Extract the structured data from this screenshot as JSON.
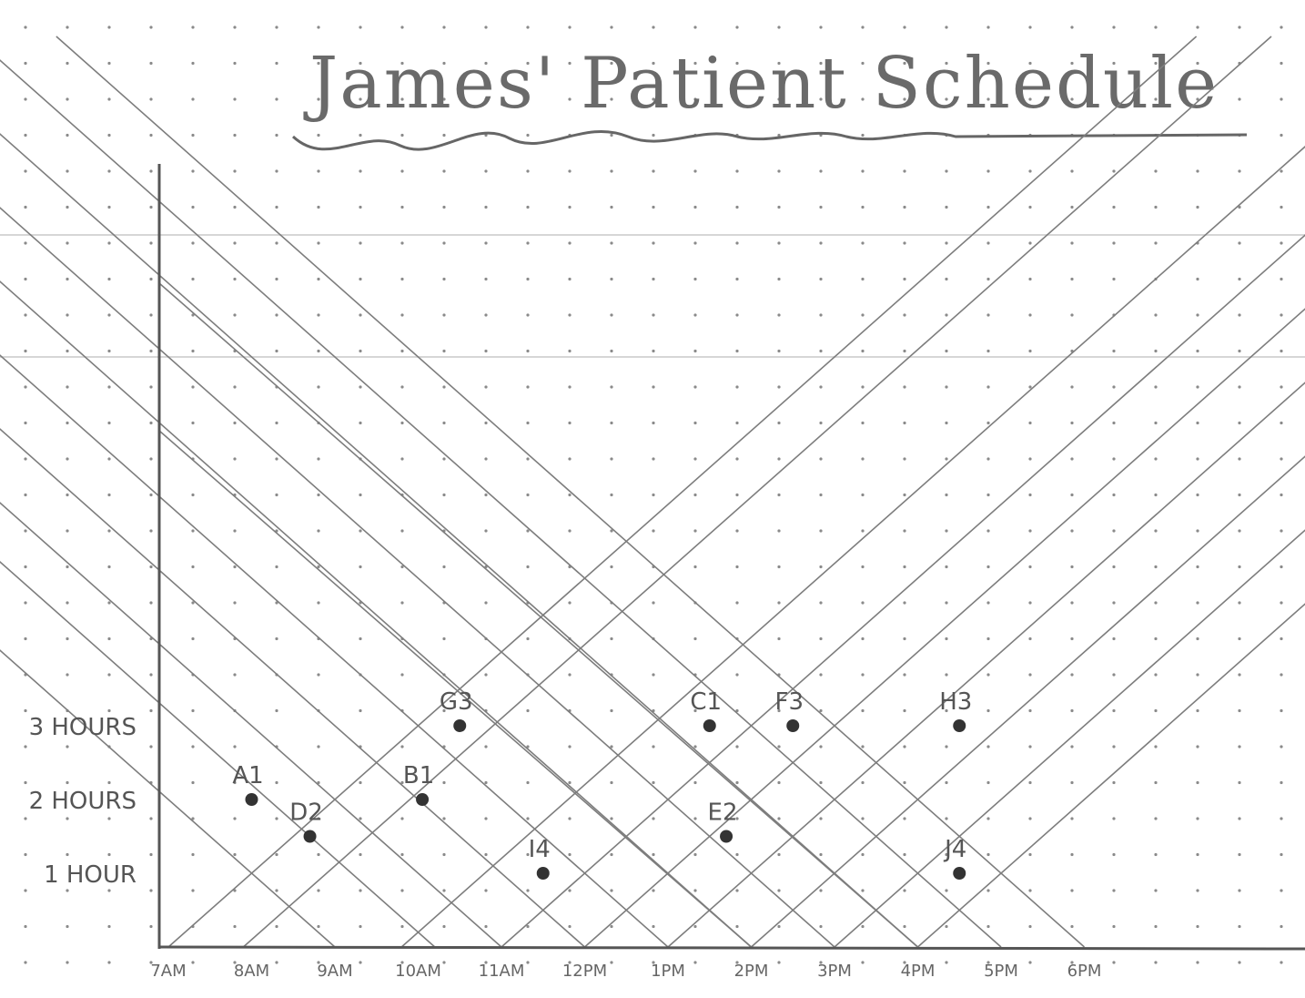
{
  "title": "James' Patient Schedule",
  "y_axis": {
    "ticks": [
      {
        "label": "1 HOUR",
        "hours": 1
      },
      {
        "label": "2 HOURS",
        "hours": 2
      },
      {
        "label": "3 HOURS",
        "hours": 3
      }
    ]
  },
  "x_axis": {
    "ticks": [
      "7AM",
      "8AM",
      "9AM",
      "10AM",
      "11AM",
      "12PM",
      "1PM",
      "2PM",
      "3PM",
      "4PM",
      "5PM",
      "6PM"
    ]
  },
  "patients": [
    {
      "label": "A1",
      "time_hours": 1.0,
      "duration_hours": 2.0
    },
    {
      "label": "D2",
      "time_hours": 1.7,
      "duration_hours": 1.5
    },
    {
      "label": "B1",
      "time_hours": 3.05,
      "duration_hours": 2.0
    },
    {
      "label": "G3",
      "time_hours": 3.5,
      "duration_hours": 3.0
    },
    {
      "label": "I4",
      "time_hours": 4.5,
      "duration_hours": 1.0
    },
    {
      "label": "C1",
      "time_hours": 6.5,
      "duration_hours": 3.0
    },
    {
      "label": "E2",
      "time_hours": 6.7,
      "duration_hours": 1.5
    },
    {
      "label": "F3",
      "time_hours": 7.5,
      "duration_hours": 3.0
    },
    {
      "label": "H3",
      "time_hours": 9.5,
      "duration_hours": 3.0
    },
    {
      "label": "J4",
      "time_hours": 9.5,
      "duration_hours": 1.0
    }
  ],
  "diagonal_lines": {
    "rising_from_hours": [
      0.0,
      0.9,
      2.8,
      4.0,
      5.0,
      6.0,
      7.0,
      8.0,
      9.0
    ],
    "falling_from_hours": [
      2.0,
      3.2,
      4.0,
      5.0,
      6.0,
      7.0,
      8.0,
      9.0,
      10.0,
      11.0
    ],
    "long_falling_lines_from_y_hours": [
      9.0,
      7.0
    ]
  },
  "colors": {
    "paper": "#ffffff",
    "dot": "#8a8a8a",
    "axis": "#555555",
    "line": "#7d7d7d",
    "point": "#333333",
    "rule": "#d6d6d6"
  }
}
